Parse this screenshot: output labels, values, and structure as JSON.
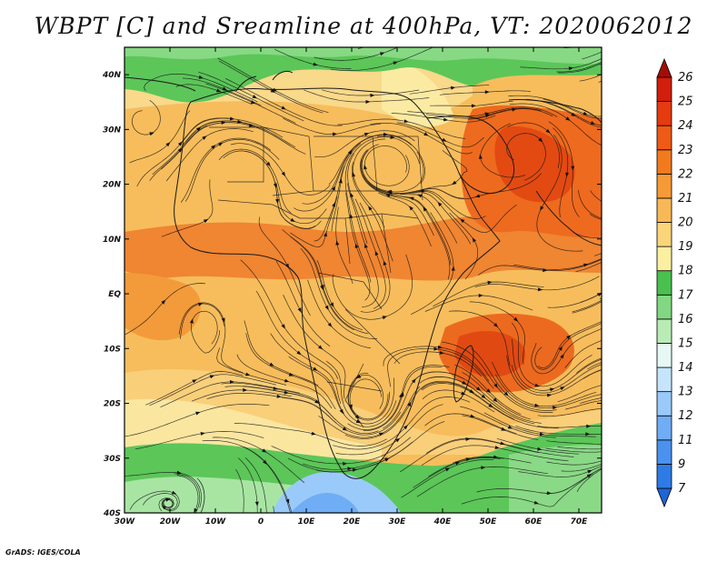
{
  "title": "WBPT [C] and Sreamline at 400hPa, VT: 2020062012",
  "credit": "GrADS: IGES/COLA",
  "map": {
    "lon_range": [
      -30,
      75
    ],
    "lat_range": [
      -40,
      45
    ],
    "lon_ticks": [
      "30W",
      "20W",
      "10W",
      "0",
      "10E",
      "20E",
      "30E",
      "40E",
      "50E",
      "60E",
      "70E"
    ],
    "lat_ticks": [
      "40S",
      "30S",
      "20S",
      "10S",
      "EQ",
      "10N",
      "20N",
      "30N",
      "40N"
    ],
    "field": "Wet-bulb potential temperature",
    "units": "C",
    "level": "400hPa",
    "overlay": "streamlines"
  },
  "colorbar": {
    "labels": [
      "7",
      "9",
      "11",
      "12",
      "13",
      "14",
      "15",
      "16",
      "17",
      "18",
      "19",
      "20",
      "21",
      "22",
      "23",
      "24",
      "25",
      "26"
    ],
    "colors": [
      "#1f65d6",
      "#2f7be6",
      "#4a92ee",
      "#6fadf5",
      "#9acaf9",
      "#c6e5fc",
      "#e6f8f4",
      "#b9ecb4",
      "#82d882",
      "#49c04f",
      "#fbefa0",
      "#fad579",
      "#f8b857",
      "#f59a35",
      "#f27a1e",
      "#ef5a16",
      "#e63a10",
      "#d21e0a",
      "#a50c04"
    ]
  }
}
